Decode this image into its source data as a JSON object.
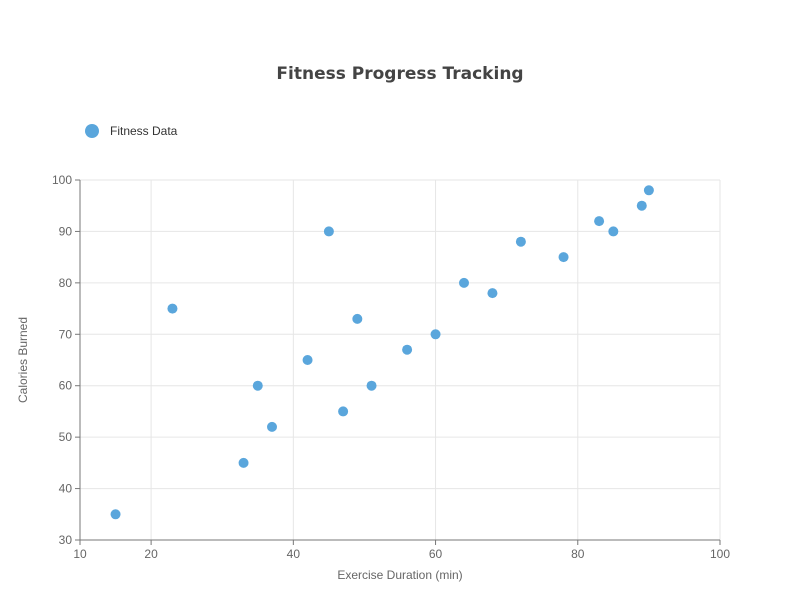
{
  "chart_data": {
    "type": "scatter",
    "title": "Fitness Progress Tracking",
    "xlabel": "Exercise Duration (min)",
    "ylabel": "Calories Burned",
    "xlim": [
      10,
      100
    ],
    "ylim": [
      30,
      100
    ],
    "xticks": [
      10,
      20,
      40,
      60,
      80,
      100
    ],
    "yticks": [
      30,
      40,
      50,
      60,
      70,
      80,
      90,
      100
    ],
    "grid": true,
    "legend_position": "top-left",
    "series": [
      {
        "name": "Fitness Data",
        "color": "#5aa6dc",
        "points": [
          {
            "x": 15,
            "y": 35
          },
          {
            "x": 23,
            "y": 75
          },
          {
            "x": 33,
            "y": 45
          },
          {
            "x": 35,
            "y": 60
          },
          {
            "x": 37,
            "y": 52
          },
          {
            "x": 42,
            "y": 65
          },
          {
            "x": 45,
            "y": 90
          },
          {
            "x": 47,
            "y": 55
          },
          {
            "x": 49,
            "y": 73
          },
          {
            "x": 51,
            "y": 60
          },
          {
            "x": 56,
            "y": 67
          },
          {
            "x": 60,
            "y": 70
          },
          {
            "x": 64,
            "y": 80
          },
          {
            "x": 68,
            "y": 78
          },
          {
            "x": 72,
            "y": 88
          },
          {
            "x": 78,
            "y": 85
          },
          {
            "x": 83,
            "y": 92
          },
          {
            "x": 85,
            "y": 90
          },
          {
            "x": 89,
            "y": 95
          },
          {
            "x": 90,
            "y": 98
          }
        ]
      }
    ]
  }
}
